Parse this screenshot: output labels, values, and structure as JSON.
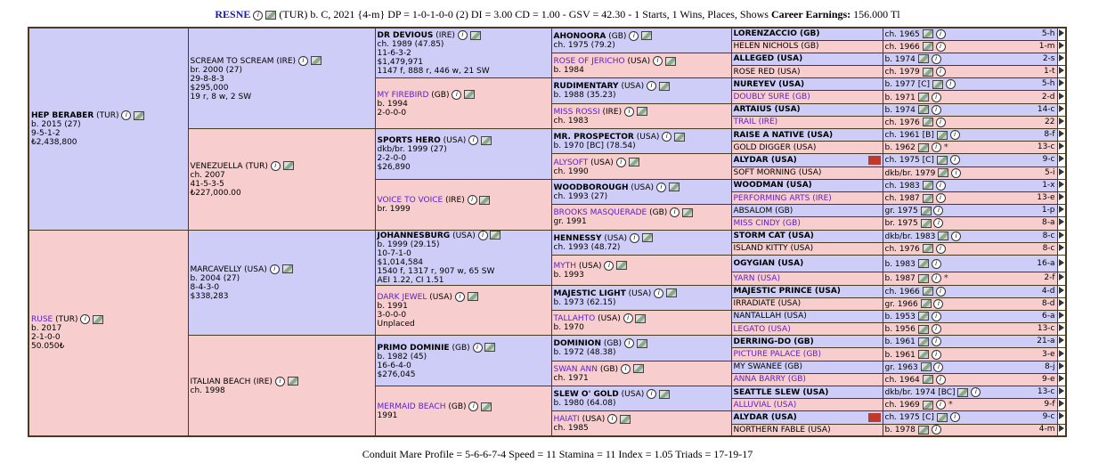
{
  "header": {
    "horse_name": "RESNE",
    "details": "(TUR) b. C, 2021 {4-m} DP = 1-0-1-0-0 (2) DI = 3.00   CD = 1.00 - GSV = 42.30 - 1 Starts, 1 Wins, Places, Shows",
    "earnings_label": "Career Earnings:",
    "earnings_value": "156.000 Tl"
  },
  "sire": {
    "name": "HEP BERABER",
    "country": "(TUR)",
    "line1": "b. 2015 (27)",
    "line2": "9-5-1-2",
    "line3": "₺2,438,800",
    "sire": {
      "name": "SCREAM TO SCREAM",
      "country": "(IRE)",
      "line1": "br. 2000 (27)",
      "line2": "29-8-8-3",
      "line3": "$295,000",
      "line4": "19 r, 8 w, 2 SW",
      "sire": {
        "name": "DR DEVIOUS",
        "country": "(IRE)",
        "line1": "ch. 1989 (47.85)",
        "line2": "11-6-3-2",
        "line3": "$1,479,971",
        "line4": "1147 f, 888 r, 446 w, 21 SW"
      },
      "dam": {
        "name": "MY FIREBIRD",
        "country": "(GB)",
        "line1": "b. 1994",
        "line2": "2-0-0-0"
      }
    },
    "dam": {
      "name": "VENEZUELLA",
      "country": "(TUR)",
      "line1": "ch. 2007",
      "line2": "41-5-3-5",
      "line3": "₺227,000.00",
      "sire": {
        "name": "SPORTS HERO",
        "country": "(USA)",
        "line1": "dkb/br. 1999 (27)",
        "line2": "2-2-0-0",
        "line3": "$26,890"
      },
      "dam": {
        "name": "VOICE TO VOICE",
        "country": "(IRE)",
        "line1": "br. 1999"
      }
    }
  },
  "dam": {
    "name": "RUSE",
    "country": "(TUR)",
    "line1": "b. 2017",
    "line2": "2-1-0-0",
    "line3": "50.050₺",
    "sire": {
      "name": "MARCAVELLY",
      "country": "(USA)",
      "line1": "b. 2004 (27)",
      "line2": "8-4-3-0",
      "line3": "$338,283",
      "sire": {
        "name": "JOHANNESBURG",
        "country": "(USA)",
        "line1": "b. 1999 (29.15)",
        "line2": "10-7-1-0",
        "line3": "$1,014,584",
        "line4": "1540 f, 1317 r, 907 w, 65 SW",
        "line5": "AEI 1.22, CI 1.51"
      },
      "dam": {
        "name": "DARK JEWEL",
        "country": "(USA)",
        "line1": "b. 1991",
        "line2": "3-0-0-0",
        "line3": "Unplaced"
      }
    },
    "dam": {
      "name": "ITALIAN BEACH",
      "country": "(IRE)",
      "line1": "ch. 1998",
      "sire": {
        "name": "PRIMO DOMINIE",
        "country": "(GB)",
        "line1": "b. 1982 (45)",
        "line2": "16-6-4-0",
        "line3": "$276,045"
      },
      "dam": {
        "name": "MERMAID BEACH",
        "country": "(GB)",
        "line1": "1991"
      }
    }
  },
  "gen4": [
    {
      "name": "AHONOORA",
      "country": "(GB)",
      "line1": "ch. 1975 (79.2)"
    },
    {
      "name": "ROSE OF JERICHO",
      "country": "(USA)",
      "line1": "b. 1984"
    },
    {
      "name": "RUDIMENTARY",
      "country": "(USA)",
      "line1": "b. 1988 (35.23)"
    },
    {
      "name": "MISS ROSSI",
      "country": "(IRE)",
      "line1": "ch. 1983"
    },
    {
      "name": "MR. PROSPECTOR",
      "country": "(USA)",
      "line1": "b. 1970 [BC] (78.54)"
    },
    {
      "name": "ALYSOFT",
      "country": "(USA)",
      "line1": "ch. 1990"
    },
    {
      "name": "WOODBOROUGH",
      "country": "(USA)",
      "line1": "ch. 1993 (27)"
    },
    {
      "name": "BROOKS MASQUERADE",
      "country": "(GB)",
      "line1": "gr. 1991"
    },
    {
      "name": "HENNESSY",
      "country": "(USA)",
      "line1": "ch. 1993 (48.72)"
    },
    {
      "name": "MYTH",
      "country": "(USA)",
      "line1": "b. 1993"
    },
    {
      "name": "MAJESTIC LIGHT",
      "country": "(USA)",
      "line1": "b. 1973 (62.15)"
    },
    {
      "name": "TALLAHTO",
      "country": "(USA)",
      "line1": "b. 1970"
    },
    {
      "name": "DOMINION",
      "country": "(GB)",
      "line1": "b. 1972 (48.38)"
    },
    {
      "name": "SWAN ANN",
      "country": "(GB)",
      "line1": "ch. 1971"
    },
    {
      "name": "SLEW O' GOLD",
      "country": "(USA)",
      "line1": "b. 1980 (64.08)"
    },
    {
      "name": "HAIATI",
      "country": "(USA)",
      "line1": "ch. 1985"
    }
  ],
  "gen5": [
    {
      "name": "LORENZACCIO (GB)",
      "year": "ch. 1965",
      "count": "5-h"
    },
    {
      "name": "HELEN NICHOLS (GB)",
      "year": "ch. 1966",
      "count": "1-m"
    },
    {
      "name": "ALLEGED (USA)",
      "year": "b. 1974",
      "count": "2-s"
    },
    {
      "name": "ROSE RED (USA)",
      "year": "ch. 1979",
      "count": "1-t"
    },
    {
      "name": "NUREYEV (USA)",
      "year": "b. 1977 [C]",
      "count": "5-h"
    },
    {
      "name": "DOUBLY SURE (GB)",
      "year": "b. 1971",
      "count": "2-d"
    },
    {
      "name": "ARTAIUS (USA)",
      "year": "b. 1974",
      "count": "14-c"
    },
    {
      "name": "TRAIL (IRE)",
      "year": "ch. 1976",
      "count": "22"
    },
    {
      "name": "RAISE A NATIVE (USA)",
      "year": "ch. 1961 [B]",
      "count": "8-f"
    },
    {
      "name": "GOLD DIGGER (USA)",
      "year": "b. 1962",
      "count": "13-c"
    },
    {
      "name": "ALYDAR (USA)",
      "year": "ch. 1975 [C]",
      "count": "9-c"
    },
    {
      "name": "SOFT MORNING (USA)",
      "year": "dkb/br. 1979",
      "count": "5-i"
    },
    {
      "name": "WOODMAN (USA)",
      "year": "ch. 1983",
      "count": "1-x"
    },
    {
      "name": "PERFORMING ARTS (IRE)",
      "year": "ch. 1987",
      "count": "13-e"
    },
    {
      "name": "ABSALOM (GB)",
      "year": "gr. 1975",
      "count": "1-p"
    },
    {
      "name": "MISS CINDY (GB)",
      "year": "br. 1975",
      "count": "8-a"
    },
    {
      "name": "STORM CAT (USA)",
      "year": "dkb/br. 1983",
      "count": "8-c"
    },
    {
      "name": "ISLAND KITTY (USA)",
      "year": "ch. 1976",
      "count": "8-c"
    },
    {
      "name": "OGYGIAN (USA)",
      "year": "b. 1983",
      "count": "16-a"
    },
    {
      "name": "YARN (USA)",
      "year": "b. 1987",
      "count": "2-f"
    },
    {
      "name": "MAJESTIC PRINCE (USA)",
      "year": "ch. 1966",
      "count": "4-d"
    },
    {
      "name": "IRRADIATE (USA)",
      "year": "gr. 1966",
      "count": "8-d"
    },
    {
      "name": "NANTALLAH (USA)",
      "year": "b. 1953",
      "count": "6-a"
    },
    {
      "name": "LEGATO (USA)",
      "year": "b. 1956",
      "count": "13-c"
    },
    {
      "name": "DERRING-DO (GB)",
      "year": "b. 1961",
      "count": "21-a"
    },
    {
      "name": "PICTURE PALACE (GB)",
      "year": "b. 1961",
      "count": "3-e"
    },
    {
      "name": "MY SWANEE (GB)",
      "year": "gr. 1963",
      "count": "8-j"
    },
    {
      "name": "ANNA BARRY (GB)",
      "year": "ch. 1964",
      "count": "9-e"
    },
    {
      "name": "SEATTLE SLEW (USA)",
      "year": "dkb/br. 1974 [BC]",
      "count": "13-c"
    },
    {
      "name": "ALLUVIAL (USA)",
      "year": "ch. 1969",
      "count": "9-f"
    },
    {
      "name": "ALYDAR (USA)",
      "year": "ch. 1975 [C]",
      "count": "9-c"
    },
    {
      "name": "NORTHERN FABLE (USA)",
      "year": "b. 1978",
      "count": "4-m"
    }
  ],
  "footer": "Conduit Mare Profile = 5-6-6-7-4   Speed = 11   Stamina = 11   Index = 1.05   Triads = 17-19-17"
}
